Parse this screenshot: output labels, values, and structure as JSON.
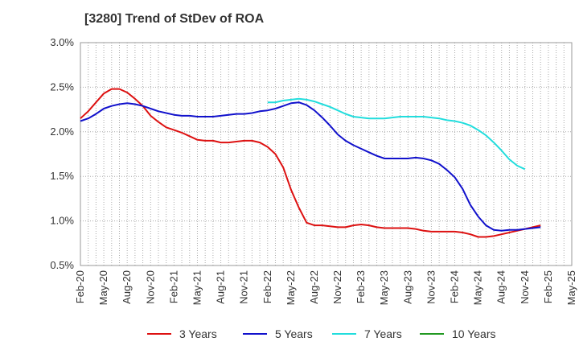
{
  "chart_data": {
    "type": "line",
    "title": "[3280]  Trend of StDev of ROA",
    "xlabel": "",
    "ylabel": "",
    "ylim": [
      0.5,
      3.0
    ],
    "y_ticks": [
      "0.5%",
      "1.0%",
      "1.5%",
      "2.0%",
      "2.5%",
      "3.0%"
    ],
    "y_tick_values": [
      0.5,
      1.0,
      1.5,
      2.0,
      2.5,
      3.0
    ],
    "x_ticks": [
      "Feb-20",
      "May-20",
      "Aug-20",
      "Nov-20",
      "Feb-21",
      "May-21",
      "Aug-21",
      "Nov-21",
      "Feb-22",
      "May-22",
      "Aug-22",
      "Nov-22",
      "Feb-23",
      "May-23",
      "Aug-23",
      "Nov-23",
      "Feb-24",
      "May-24",
      "Aug-24",
      "Nov-24",
      "Feb-25",
      "May-25"
    ],
    "grid": true,
    "legend_position": "bottom",
    "series": [
      {
        "name": "3 Years",
        "color": "#dd1111",
        "start_index": 0,
        "values": [
          2.15,
          2.23,
          2.33,
          2.43,
          2.48,
          2.48,
          2.44,
          2.37,
          2.29,
          2.18,
          2.11,
          2.05,
          2.02,
          1.99,
          1.95,
          1.91,
          1.9,
          1.9,
          1.88,
          1.88,
          1.89,
          1.9,
          1.9,
          1.88,
          1.83,
          1.75,
          1.6,
          1.35,
          1.15,
          0.98,
          0.95,
          0.95,
          0.94,
          0.93,
          0.93,
          0.95,
          0.96,
          0.95,
          0.93,
          0.92,
          0.92,
          0.92,
          0.92,
          0.91,
          0.89,
          0.88,
          0.88,
          0.88,
          0.88,
          0.87,
          0.85,
          0.82,
          0.82,
          0.83,
          0.85,
          0.87,
          0.89,
          0.91,
          0.93,
          0.95
        ]
      },
      {
        "name": "5 Years",
        "color": "#1111cc",
        "start_index": 0,
        "values": [
          2.12,
          2.15,
          2.2,
          2.26,
          2.29,
          2.31,
          2.32,
          2.31,
          2.29,
          2.26,
          2.23,
          2.21,
          2.19,
          2.18,
          2.18,
          2.17,
          2.17,
          2.17,
          2.18,
          2.19,
          2.2,
          2.2,
          2.21,
          2.23,
          2.24,
          2.26,
          2.29,
          2.32,
          2.33,
          2.3,
          2.24,
          2.16,
          2.07,
          1.97,
          1.9,
          1.85,
          1.81,
          1.77,
          1.73,
          1.7,
          1.7,
          1.7,
          1.7,
          1.71,
          1.7,
          1.68,
          1.64,
          1.57,
          1.49,
          1.36,
          1.18,
          1.05,
          0.95,
          0.9,
          0.89,
          0.9,
          0.9,
          0.91,
          0.92,
          0.93
        ]
      },
      {
        "name": "7 Years",
        "color": "#22dddd",
        "start_index": 24,
        "values": [
          2.33,
          2.33,
          2.35,
          2.36,
          2.37,
          2.36,
          2.34,
          2.31,
          2.28,
          2.24,
          2.2,
          2.17,
          2.16,
          2.15,
          2.15,
          2.15,
          2.16,
          2.17,
          2.17,
          2.17,
          2.17,
          2.16,
          2.15,
          2.13,
          2.12,
          2.1,
          2.07,
          2.02,
          1.96,
          1.88,
          1.79,
          1.69,
          1.62,
          1.58
        ]
      },
      {
        "name": "10 Years",
        "color": "#229922",
        "start_index": 0,
        "values": []
      }
    ]
  }
}
